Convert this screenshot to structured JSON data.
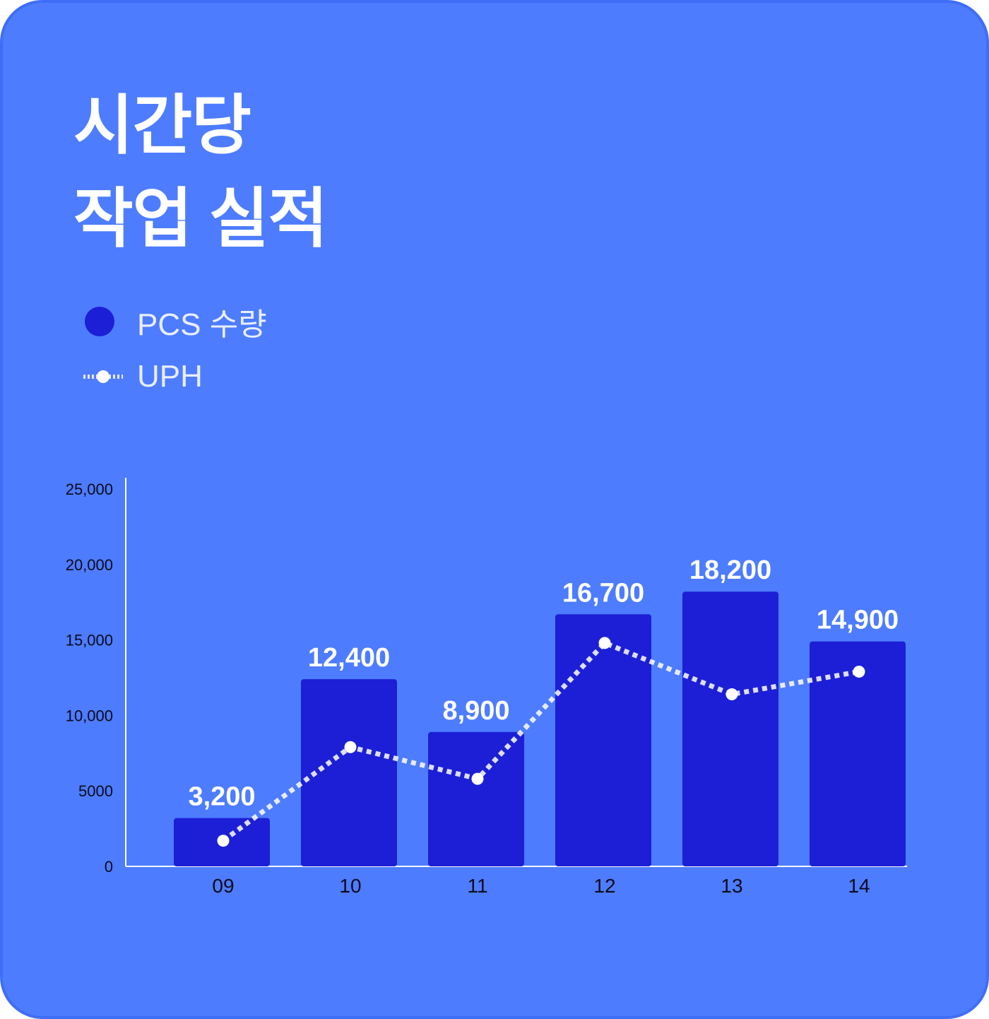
{
  "title_line1": "시간당",
  "title_line2": "작업 실적",
  "legend": {
    "bar_label": "PCS 수량",
    "line_label": "UPH"
  },
  "colors": {
    "background": "#4d7cfe",
    "bar": "#1c1fd6",
    "line": "#ffffff",
    "text": "#ffffff"
  },
  "chart_data": {
    "type": "bar",
    "categories": [
      "09",
      "10",
      "11",
      "12",
      "13",
      "14"
    ],
    "series": [
      {
        "name": "PCS 수량",
        "type": "bar",
        "values": [
          3200,
          12400,
          8900,
          16700,
          18200,
          14900
        ]
      },
      {
        "name": "UPH",
        "type": "line",
        "values": [
          1700,
          7900,
          5800,
          14800,
          11400,
          12900
        ]
      }
    ],
    "data_labels": [
      "3,200",
      "12,400",
      "8,900",
      "16,700",
      "18,200",
      "14,900"
    ],
    "yticks": [
      "0",
      "5000",
      "10,000",
      "15,000",
      "20,000",
      "25,000"
    ],
    "ytick_values": [
      0,
      5000,
      10000,
      15000,
      20000,
      25000
    ],
    "ylim": [
      0,
      25000
    ],
    "grid": false,
    "legend_position": "top-left"
  }
}
